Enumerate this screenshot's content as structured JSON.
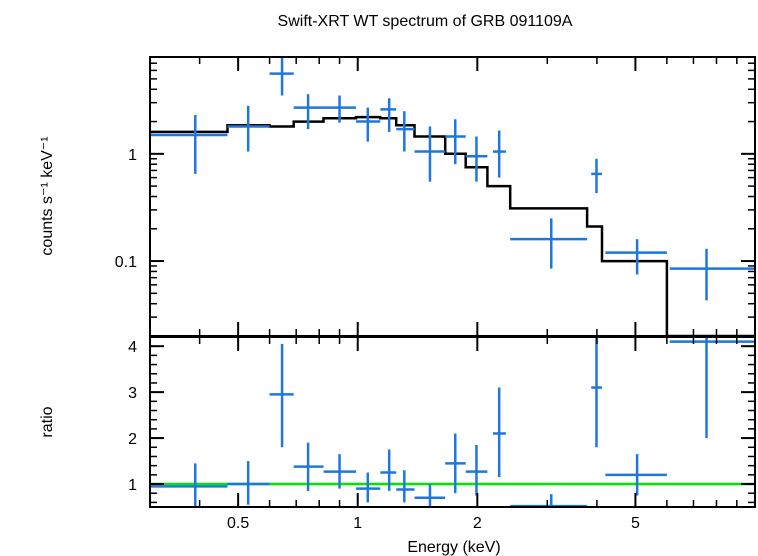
{
  "chart_data": {
    "type": "scatter",
    "title": "Swift-XRT WT spectrum of GRB 091109A",
    "xlabel": "Energy (keV)",
    "x_scale": "log",
    "xlim": [
      0.3,
      10
    ],
    "x_ticks": [
      0.5,
      1,
      2,
      5
    ],
    "x_tick_labels": [
      "0.5",
      "1",
      "2",
      "5"
    ],
    "panels": [
      {
        "name": "spectrum",
        "ylabel": "counts s⁻¹ keV⁻¹",
        "y_scale": "log",
        "ylim": [
          0.02,
          8
        ],
        "y_ticks": [
          0.1,
          1
        ],
        "y_tick_labels": [
          "0.1",
          "1"
        ],
        "data": {
          "color": "#1e78dc",
          "points": [
            {
              "x": 0.39,
              "xlo": 0.3,
              "xhi": 0.47,
              "y": 1.5,
              "ylo": 0.65,
              "yhi": 2.3
            },
            {
              "x": 0.53,
              "xlo": 0.47,
              "xhi": 0.6,
              "y": 1.8,
              "ylo": 1.05,
              "yhi": 2.8
            },
            {
              "x": 0.645,
              "xlo": 0.6,
              "xhi": 0.69,
              "y": 5.6,
              "ylo": 3.5,
              "yhi": 8.0
            },
            {
              "x": 0.75,
              "xlo": 0.69,
              "xhi": 0.82,
              "y": 2.7,
              "ylo": 1.7,
              "yhi": 3.6
            },
            {
              "x": 0.9,
              "xlo": 0.82,
              "xhi": 0.99,
              "y": 2.7,
              "ylo": 1.95,
              "yhi": 3.5
            },
            {
              "x": 1.06,
              "xlo": 0.99,
              "xhi": 1.14,
              "y": 2.0,
              "ylo": 1.3,
              "yhi": 2.7
            },
            {
              "x": 1.2,
              "xlo": 1.14,
              "xhi": 1.25,
              "y": 2.6,
              "ylo": 1.6,
              "yhi": 3.3
            },
            {
              "x": 1.31,
              "xlo": 1.25,
              "xhi": 1.39,
              "y": 1.7,
              "ylo": 1.05,
              "yhi": 2.5
            },
            {
              "x": 1.52,
              "xlo": 1.39,
              "xhi": 1.66,
              "y": 1.05,
              "ylo": 0.55,
              "yhi": 1.8
            },
            {
              "x": 1.76,
              "xlo": 1.66,
              "xhi": 1.87,
              "y": 1.45,
              "ylo": 0.8,
              "yhi": 2.1
            },
            {
              "x": 1.99,
              "xlo": 1.87,
              "xhi": 2.12,
              "y": 0.95,
              "ylo": 0.55,
              "yhi": 1.45
            },
            {
              "x": 2.27,
              "xlo": 2.19,
              "xhi": 2.36,
              "y": 1.05,
              "ylo": 0.6,
              "yhi": 1.65
            },
            {
              "x": 3.07,
              "xlo": 2.42,
              "xhi": 3.78,
              "y": 0.16,
              "ylo": 0.085,
              "yhi": 0.25
            },
            {
              "x": 3.99,
              "xlo": 3.87,
              "xhi": 4.12,
              "y": 0.65,
              "ylo": 0.43,
              "yhi": 0.9
            },
            {
              "x": 5.05,
              "xlo": 4.2,
              "xhi": 6.0,
              "y": 0.12,
              "ylo": 0.075,
              "yhi": 0.16
            },
            {
              "x": 7.55,
              "xlo": 6.1,
              "xhi": 10.0,
              "y": 0.085,
              "ylo": 0.043,
              "yhi": 0.13
            }
          ]
        },
        "model": {
          "color": "#000000",
          "steps": [
            {
              "xlo": 0.3,
              "xhi": 0.47,
              "y": 1.6
            },
            {
              "xlo": 0.47,
              "xhi": 0.6,
              "y": 1.85
            },
            {
              "xlo": 0.6,
              "xhi": 0.69,
              "y": 1.8
            },
            {
              "xlo": 0.69,
              "xhi": 0.82,
              "y": 2.0
            },
            {
              "xlo": 0.82,
              "xhi": 0.99,
              "y": 2.15
            },
            {
              "xlo": 0.99,
              "xhi": 1.14,
              "y": 2.2
            },
            {
              "xlo": 1.14,
              "xhi": 1.25,
              "y": 2.15
            },
            {
              "xlo": 1.25,
              "xhi": 1.39,
              "y": 1.85
            },
            {
              "xlo": 1.39,
              "xhi": 1.66,
              "y": 1.45
            },
            {
              "xlo": 1.66,
              "xhi": 1.87,
              "y": 1.0
            },
            {
              "xlo": 1.87,
              "xhi": 2.12,
              "y": 0.75
            },
            {
              "xlo": 2.12,
              "xhi": 2.42,
              "y": 0.5
            },
            {
              "xlo": 2.42,
              "xhi": 3.78,
              "y": 0.31
            },
            {
              "xlo": 3.78,
              "xhi": 4.12,
              "y": 0.21
            },
            {
              "xlo": 4.12,
              "xhi": 6.0,
              "y": 0.1
            },
            {
              "xlo": 6.0,
              "xhi": 10.0,
              "y": 0.01
            }
          ]
        }
      },
      {
        "name": "ratio",
        "ylabel": "ratio",
        "y_scale": "linear",
        "ylim": [
          0.5,
          4.2
        ],
        "y_ticks": [
          1,
          2,
          3,
          4
        ],
        "y_tick_labels": [
          "1",
          "2",
          "3",
          "4"
        ],
        "reference_line": {
          "y": 1,
          "color": "#00e600"
        },
        "data": {
          "color": "#1e78dc",
          "points": [
            {
              "x": 0.39,
              "xlo": 0.3,
              "xhi": 0.47,
              "y": 0.95,
              "ylo": 0.45,
              "yhi": 1.45
            },
            {
              "x": 0.53,
              "xlo": 0.47,
              "xhi": 0.6,
              "y": 1.0,
              "ylo": 0.55,
              "yhi": 1.5
            },
            {
              "x": 0.645,
              "xlo": 0.6,
              "xhi": 0.69,
              "y": 2.95,
              "ylo": 1.8,
              "yhi": 4.05
            },
            {
              "x": 0.75,
              "xlo": 0.69,
              "xhi": 0.82,
              "y": 1.38,
              "ylo": 0.85,
              "yhi": 1.9
            },
            {
              "x": 0.9,
              "xlo": 0.82,
              "xhi": 0.99,
              "y": 1.27,
              "ylo": 0.9,
              "yhi": 1.65
            },
            {
              "x": 1.06,
              "xlo": 0.99,
              "xhi": 1.14,
              "y": 0.9,
              "ylo": 0.6,
              "yhi": 1.25
            },
            {
              "x": 1.2,
              "xlo": 1.14,
              "xhi": 1.25,
              "y": 1.25,
              "ylo": 0.85,
              "yhi": 1.75
            },
            {
              "x": 1.31,
              "xlo": 1.25,
              "xhi": 1.39,
              "y": 0.88,
              "ylo": 0.6,
              "yhi": 1.3
            },
            {
              "x": 1.52,
              "xlo": 1.39,
              "xhi": 1.66,
              "y": 0.7,
              "ylo": 0.45,
              "yhi": 1.0
            },
            {
              "x": 1.76,
              "xlo": 1.66,
              "xhi": 1.87,
              "y": 1.45,
              "ylo": 0.8,
              "yhi": 2.1
            },
            {
              "x": 1.99,
              "xlo": 1.87,
              "xhi": 2.12,
              "y": 1.27,
              "ylo": 0.75,
              "yhi": 1.85
            },
            {
              "x": 2.27,
              "xlo": 2.19,
              "xhi": 2.36,
              "y": 2.1,
              "ylo": 1.15,
              "yhi": 3.1
            },
            {
              "x": 3.07,
              "xlo": 2.42,
              "xhi": 3.78,
              "y": 0.52,
              "ylo": 0.3,
              "yhi": 0.78
            },
            {
              "x": 3.99,
              "xlo": 3.87,
              "xhi": 4.12,
              "y": 3.1,
              "ylo": 1.8,
              "yhi": 4.4
            },
            {
              "x": 5.05,
              "xlo": 4.2,
              "xhi": 6.0,
              "y": 1.2,
              "ylo": 0.75,
              "yhi": 1.65
            },
            {
              "x": 7.55,
              "xlo": 6.1,
              "xhi": 10.0,
              "y": 4.1,
              "ylo": 2.0,
              "yhi": 4.3
            }
          ]
        }
      }
    ]
  }
}
